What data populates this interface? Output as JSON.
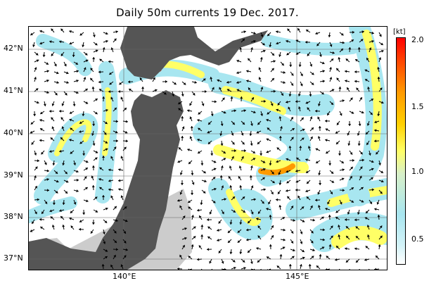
{
  "title": "Daily 50m currents 19 Dec. 2017.",
  "lat_labels": [
    "42°N",
    "41°N",
    "40°N",
    "39°N",
    "38°N",
    "37°N"
  ],
  "lon_labels": [
    "140°E",
    "145°E"
  ],
  "colorbar": {
    "unit": "[kt]",
    "ticks": [
      "2.0",
      "1.5",
      "1.0",
      "0.5"
    ]
  },
  "colors": {
    "land": "#555555",
    "shelf": "#cccccc",
    "slow": "#a8e6f0",
    "medium": "#ffff66",
    "fast": "#ff9a00",
    "fastest": "#ff2200"
  }
}
